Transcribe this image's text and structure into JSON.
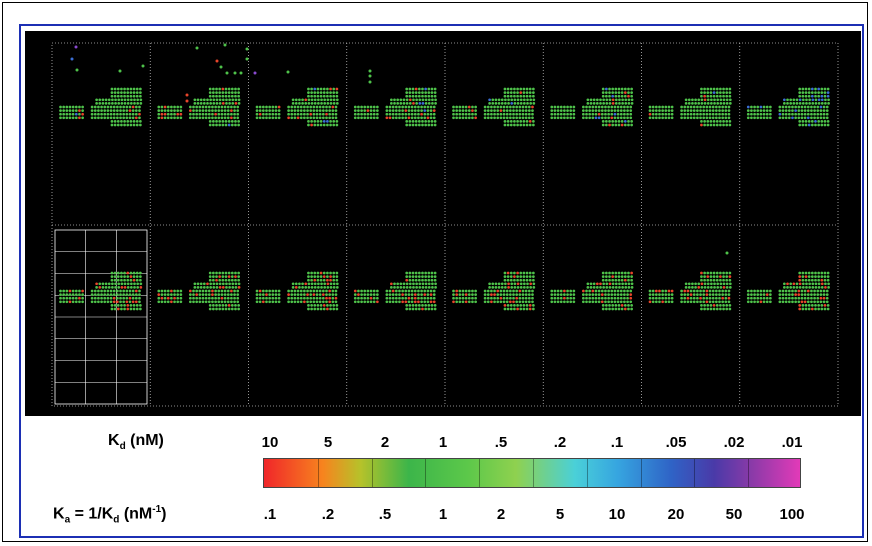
{
  "legend": {
    "kd_label": "K",
    "kd_sub": "d",
    "kd_unit": " (nM)",
    "ka_label": "K",
    "ka_sub": "a",
    "ka_eq": " = 1/K",
    "ka_eq_sub": "d",
    "ka_unit": " (nM",
    "ka_unit_sup": "-1",
    "ka_close": ")",
    "kd_ticks": [
      "10",
      "5",
      "2",
      "1",
      ".5",
      ".2",
      ".1",
      ".05",
      ".02",
      ".01"
    ],
    "ka_ticks": [
      ".1",
      ".2",
      ".5",
      "1",
      "2",
      "5",
      "10",
      "20",
      "50",
      "100"
    ]
  },
  "colors": {
    "frame": "#1c2fb4",
    "panel_background": "#000000",
    "dot_green": "#4ec24a",
    "dot_red": "#e8452a",
    "dot_blue": "#3b6fd6",
    "dot_purple": "#8a4ad0",
    "gridline": "#bbbbbb"
  }
}
